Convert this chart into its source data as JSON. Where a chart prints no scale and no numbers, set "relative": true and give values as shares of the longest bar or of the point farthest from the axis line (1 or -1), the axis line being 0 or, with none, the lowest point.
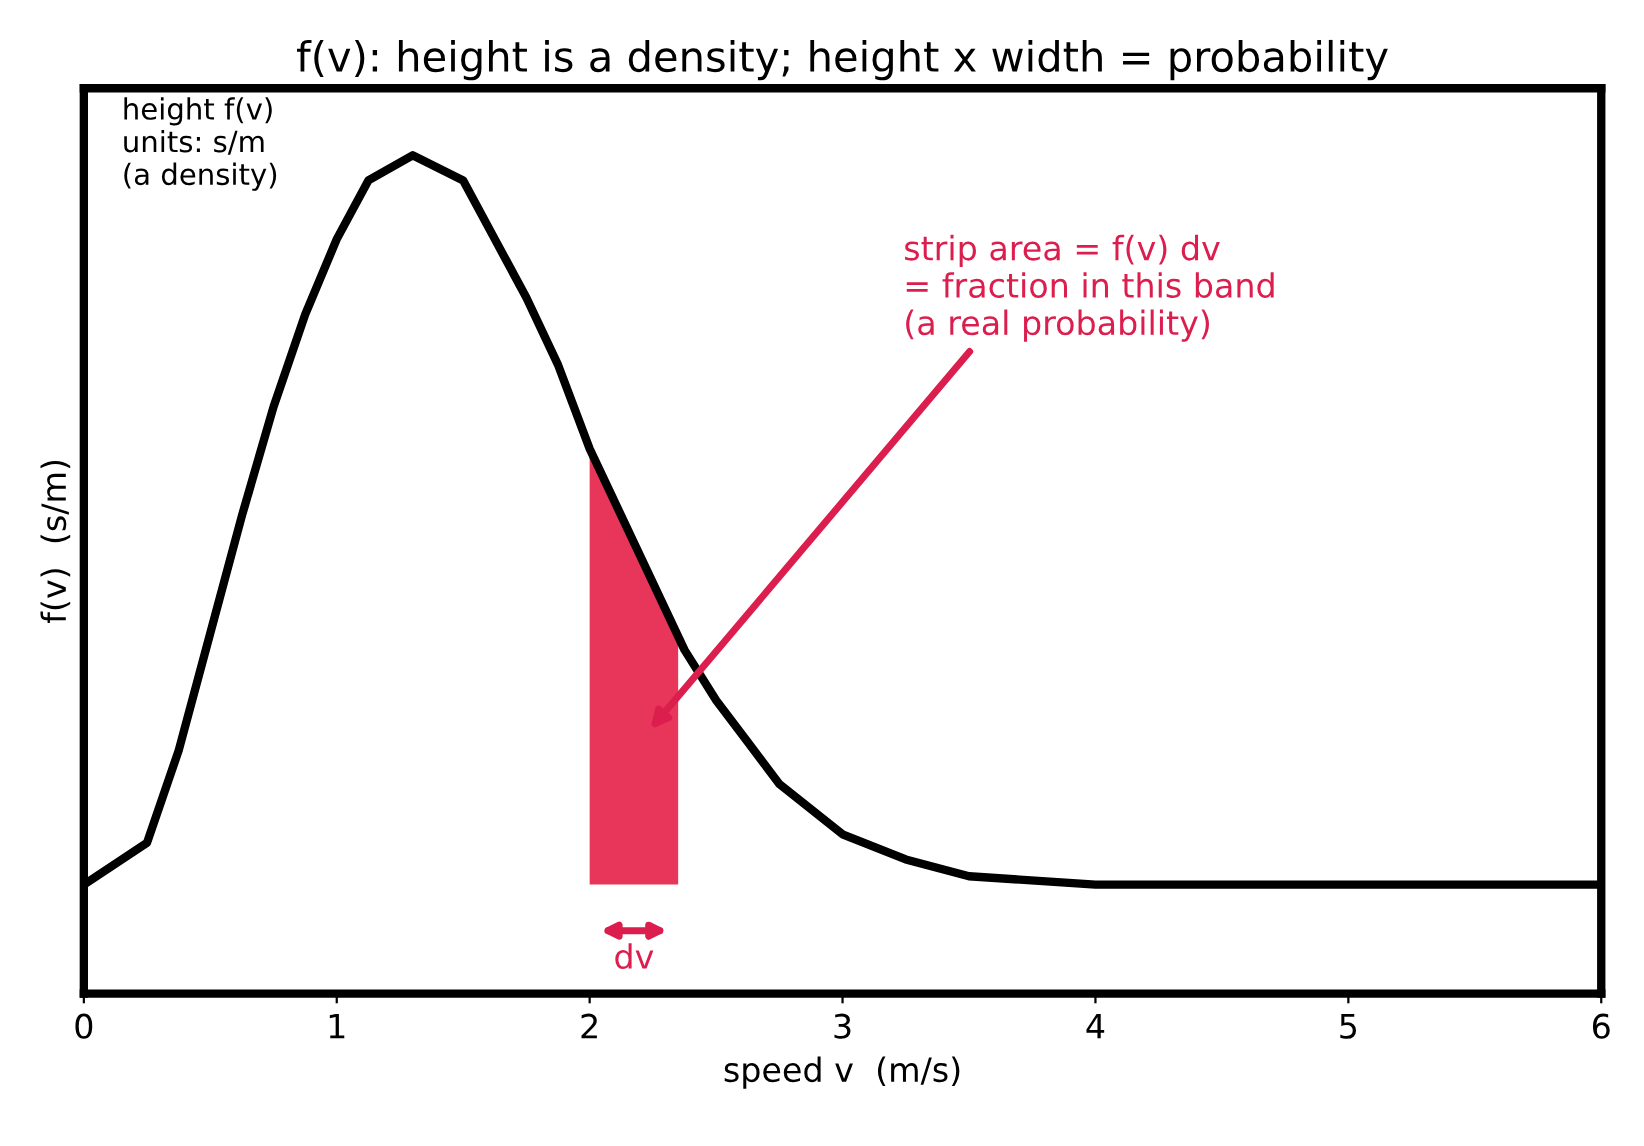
{
  "chart_data": {
    "type": "line",
    "title": "f(v): height is a density; height x width = probability",
    "xlabel": "speed v  (m/s)",
    "ylabel": "f(v)  (s/m)",
    "relative": true,
    "xlim": [
      0,
      6
    ],
    "xticks": [
      0,
      1,
      2,
      3,
      4,
      5,
      6
    ],
    "grid": false,
    "series": [
      {
        "color": "#000000",
        "x": [
          0,
          0.25,
          0.375,
          0.5,
          0.625,
          0.75,
          0.875,
          1.0,
          1.125,
          1.3,
          1.5,
          1.625,
          1.75,
          1.875,
          2.0,
          2.125,
          2.25,
          2.375,
          2.5,
          2.625,
          2.75,
          3.0,
          3.25,
          3.5,
          4.0,
          6.0
        ],
        "values": [
          0.13,
          0.18,
          0.29,
          0.43,
          0.57,
          0.7,
          0.81,
          0.9,
          0.97,
          1,
          0.97,
          0.9,
          0.83,
          0.75,
          0.65,
          0.57,
          0.49,
          0.41,
          0.35,
          0.3,
          0.25,
          0.19,
          0.16,
          0.14,
          0.13,
          0.13
        ]
      },
      {
        "type": "area",
        "color": "#e8365a",
        "x": [
          2.0,
          2.125,
          2.25,
          2.35
        ],
        "values": [
          0.65,
          0.57,
          0.49,
          0.43
        ]
      }
    ],
    "annotations": [
      "height f(v)\nunits: s/m\n(a density)",
      "strip area = f(v) dv\n= fraction in this band\n(a real probability)",
      "dv"
    ]
  }
}
